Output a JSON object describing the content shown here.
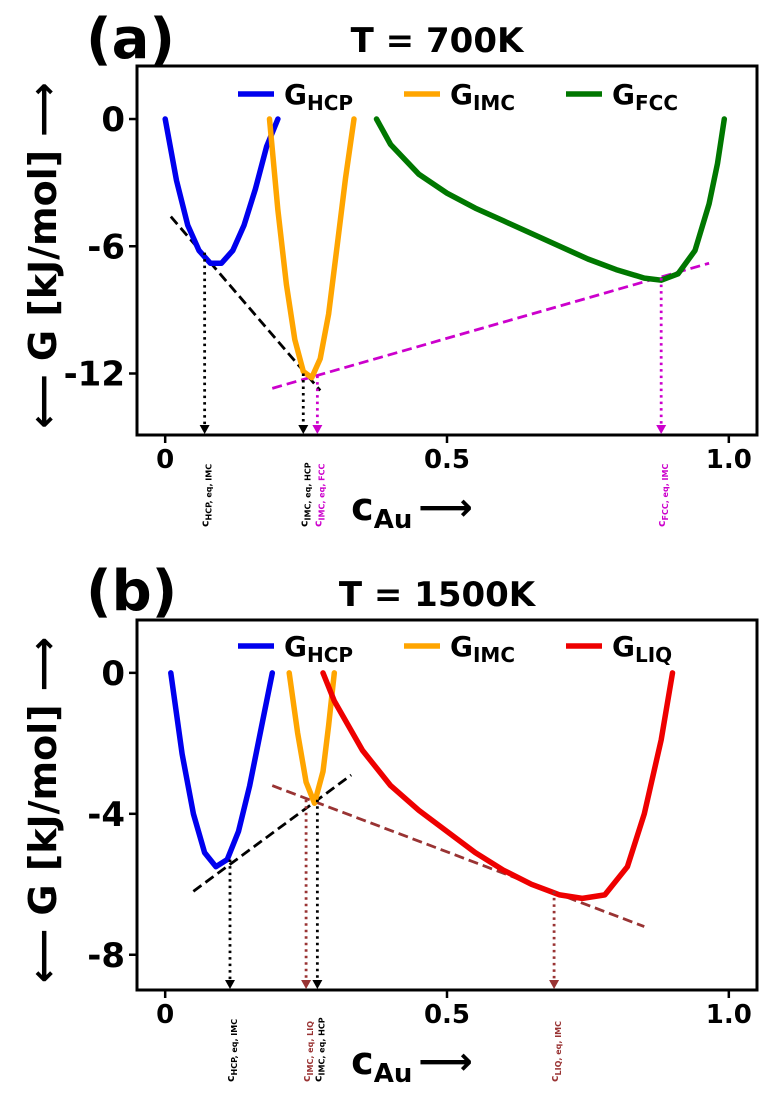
{
  "chart_data": [
    {
      "panel": "(a)",
      "type": "line",
      "title": "T = 700K",
      "xlabel": "c",
      "xlabel_sub": "Au",
      "xlabel_arrow": "⟶",
      "ylabel": "⟵ G [kJ/mol] ⟶",
      "xlim": [
        -0.05,
        1.05
      ],
      "ylim": [
        -14.9,
        2.5
      ],
      "xticks": [
        0,
        0.5,
        1.0
      ],
      "xtick_labels": [
        "0",
        "0.5",
        "1.0"
      ],
      "yticks": [
        0,
        -6,
        -12
      ],
      "ytick_labels": [
        "0",
        "-6",
        "-12"
      ],
      "legend_position": "top",
      "series": [
        {
          "name": "G",
          "sub": "HCP",
          "color": "#0000ee",
          "x": [
            0.0,
            0.02,
            0.04,
            0.06,
            0.08,
            0.1,
            0.12,
            0.14,
            0.16,
            0.18,
            0.2
          ],
          "y": [
            0.0,
            -2.9,
            -5.0,
            -6.2,
            -6.8,
            -6.8,
            -6.2,
            -5.0,
            -3.3,
            -1.3,
            0.0
          ]
        },
        {
          "name": "G",
          "sub": "IMC",
          "color": "#ffa500",
          "x": [
            0.185,
            0.2,
            0.215,
            0.23,
            0.245,
            0.26,
            0.275,
            0.29,
            0.305,
            0.32,
            0.335
          ],
          "y": [
            0.0,
            -4.3,
            -7.8,
            -10.4,
            -11.9,
            -12.2,
            -11.3,
            -9.2,
            -6.0,
            -2.8,
            0.0
          ]
        },
        {
          "name": "G",
          "sub": "FCC",
          "color": "#007700",
          "x": [
            0.375,
            0.4,
            0.45,
            0.5,
            0.55,
            0.6,
            0.65,
            0.7,
            0.75,
            0.8,
            0.85,
            0.88,
            0.91,
            0.94,
            0.965,
            0.98,
            0.992
          ],
          "y": [
            0.0,
            -1.2,
            -2.6,
            -3.5,
            -4.2,
            -4.8,
            -5.4,
            -6.0,
            -6.6,
            -7.1,
            -7.5,
            -7.6,
            -7.3,
            -6.2,
            -4.0,
            -2.1,
            0.0
          ]
        }
      ],
      "tangents": [
        {
          "color": "#000000",
          "x": [
            0.01,
            0.275
          ],
          "y": [
            -4.6,
            -12.8
          ]
        },
        {
          "color": "#cc00cc",
          "x": [
            0.19,
            0.965
          ],
          "y": [
            -12.7,
            -6.8
          ]
        }
      ],
      "drops": [
        {
          "x": 0.07,
          "y_from": -6.3,
          "color": "#000000",
          "label": "c",
          "label_sub": "HCP, eq, IMC"
        },
        {
          "x": 0.245,
          "y_from": -12.0,
          "color": "#000000",
          "label": "c",
          "label_sub": "IMC, eq, HCP"
        },
        {
          "x": 0.27,
          "y_from": -12.1,
          "color": "#cc00cc",
          "label": "c",
          "label_sub": "IMC, eq, FCC"
        },
        {
          "x": 0.88,
          "y_from": -7.5,
          "color": "#cc00cc",
          "label": "c",
          "label_sub": "FCC, eq, IMC"
        }
      ]
    },
    {
      "panel": "(b)",
      "type": "line",
      "title": "T = 1500K",
      "xlabel": "c",
      "xlabel_sub": "Au",
      "xlabel_arrow": "⟶",
      "ylabel": "⟵ G [kJ/mol] ⟶",
      "xlim": [
        -0.05,
        1.05
      ],
      "ylim": [
        -9.0,
        1.5
      ],
      "xticks": [
        0,
        0.5,
        1.0
      ],
      "xtick_labels": [
        "0",
        "0.5",
        "1.0"
      ],
      "yticks": [
        0,
        -4,
        -8
      ],
      "ytick_labels": [
        "0",
        "-4",
        "-8"
      ],
      "legend_position": "top",
      "series": [
        {
          "name": "G",
          "sub": "HCP",
          "color": "#0000ee",
          "x": [
            0.01,
            0.03,
            0.05,
            0.07,
            0.09,
            0.11,
            0.13,
            0.15,
            0.17,
            0.19
          ],
          "y": [
            0.0,
            -2.3,
            -4.0,
            -5.1,
            -5.5,
            -5.3,
            -4.5,
            -3.2,
            -1.6,
            0.0
          ]
        },
        {
          "name": "G",
          "sub": "IMC",
          "color": "#ffa500",
          "x": [
            0.22,
            0.235,
            0.25,
            0.265,
            0.28,
            0.29,
            0.3
          ],
          "y": [
            0.0,
            -1.7,
            -3.1,
            -3.7,
            -2.8,
            -1.5,
            0.0
          ]
        },
        {
          "name": "G",
          "sub": "LIQ",
          "color": "#ee0000",
          "x": [
            0.28,
            0.3,
            0.35,
            0.4,
            0.45,
            0.5,
            0.55,
            0.6,
            0.65,
            0.7,
            0.74,
            0.78,
            0.82,
            0.85,
            0.88,
            0.9
          ],
          "y": [
            0.0,
            -0.8,
            -2.2,
            -3.2,
            -3.9,
            -4.5,
            -5.1,
            -5.6,
            -6.0,
            -6.3,
            -6.4,
            -6.3,
            -5.5,
            -4.0,
            -1.9,
            0.0
          ]
        }
      ],
      "tangents": [
        {
          "color": "#000000",
          "x": [
            0.05,
            0.33
          ],
          "y": [
            -6.2,
            -2.9
          ]
        },
        {
          "color": "#993333",
          "x": [
            0.19,
            0.85
          ],
          "y": [
            -3.2,
            -7.2
          ]
        }
      ],
      "drops": [
        {
          "x": 0.115,
          "y_from": -5.3,
          "color": "#000000",
          "label": "c",
          "label_sub": "HCP, eq, IMC"
        },
        {
          "x": 0.25,
          "y_from": -3.6,
          "color": "#993333",
          "label": "c",
          "label_sub": "IMC, eq, LIQ"
        },
        {
          "x": 0.27,
          "y_from": -3.6,
          "color": "#000000",
          "label": "c",
          "label_sub": "IMC, eq, HCP"
        },
        {
          "x": 0.69,
          "y_from": -6.2,
          "color": "#993333",
          "label": "c",
          "label_sub": "LIQ, eq, IMC"
        }
      ]
    }
  ]
}
